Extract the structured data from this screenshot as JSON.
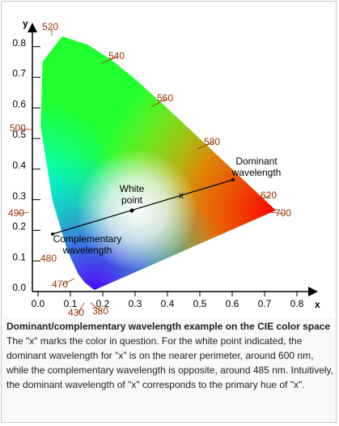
{
  "figure": {
    "axes": {
      "x_label": "x",
      "y_label": "y",
      "x_ticks": [
        "0.0",
        "0.1",
        "0.2",
        "0.3",
        "0.4",
        "0.5",
        "0.6",
        "0.7",
        "0.8"
      ],
      "y_ticks": [
        "0.0",
        "0.1",
        "0.2",
        "0.3",
        "0.4",
        "0.5",
        "0.6",
        "0.7",
        "0.8"
      ]
    },
    "wavelengths": [
      "520",
      "540",
      "560",
      "580",
      "620",
      "700",
      "500",
      "490",
      "480",
      "470",
      "430",
      "380"
    ],
    "annotations": {
      "dominant": [
        "Dominant",
        "wavelength"
      ],
      "white_point": [
        "White",
        "point"
      ],
      "complementary": [
        "Complementary",
        "wavelength"
      ],
      "marker": "x"
    }
  },
  "caption": {
    "title": "Dominant/complementary wavelength example on the CIE color space",
    "text": "The \"x\" marks the color in question. For the white point indicated, the dominant wavelength for \"x\" is on the nearer perimeter, around 600 nm, while the complementary wavelength is opposite, around 485 nm. Intuitively, the dominant wavelength of \"x\" corresponds to the primary hue of \"x\"."
  }
}
